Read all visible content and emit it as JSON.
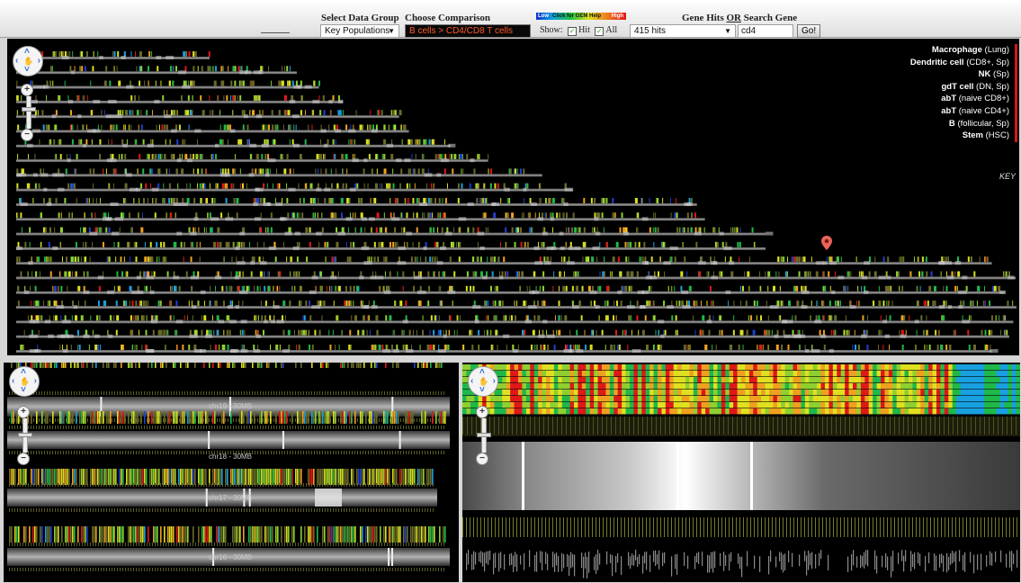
{
  "toolbar": {
    "select_group_label": "Select Data Group",
    "choose_comparison_label": "Choose Comparison",
    "data_group_value": "Key Populations",
    "comparison_value": "B cells > CD4/CD8 T cells",
    "color_legend": {
      "low": "Low",
      "click_help": "Click for GEM Help",
      "high": "High"
    },
    "show_label": "Show:",
    "hit_label": "Hit",
    "all_label": "All",
    "hits_value": "415 hits",
    "gene_hits_label": "Gene Hits",
    "or_label": "OR",
    "search_gene_label": "Search Gene",
    "search_value": "cd4",
    "go_label": "Go!"
  },
  "cell_key": [
    {
      "name": "Macrophage",
      "detail": "(Lung)"
    },
    {
      "name": "Dendritic cell",
      "detail": "(CD8+, Sp)"
    },
    {
      "name": "NK",
      "detail": "(Sp)"
    },
    {
      "name": "gdT cell",
      "detail": "(DN, Sp)"
    },
    {
      "name": "abT",
      "detail": "(naive CD8+)"
    },
    {
      "name": "abT",
      "detail": "(naive CD4+)"
    },
    {
      "name": "B",
      "detail": "(follicular, Sp)"
    },
    {
      "name": "Stem",
      "detail": "(HSC)"
    }
  ],
  "key_label": "KEY",
  "left_panel": {
    "chromosomes": [
      {
        "label": "chr19 - 30MB"
      },
      {
        "label": "chr18 - 30MB"
      },
      {
        "label": "chr17 - 30MB"
      },
      {
        "label": "chr16 - 30MB"
      }
    ]
  },
  "colors": {
    "low": "#1030c8",
    "mid": "#d8e020",
    "high": "#e01818",
    "marker": "#e8645a"
  },
  "icons": {
    "pan": "pan-hand-icon",
    "zoom_in": "plus-icon",
    "zoom_out": "minus-icon",
    "marker": "map-pin-icon"
  }
}
